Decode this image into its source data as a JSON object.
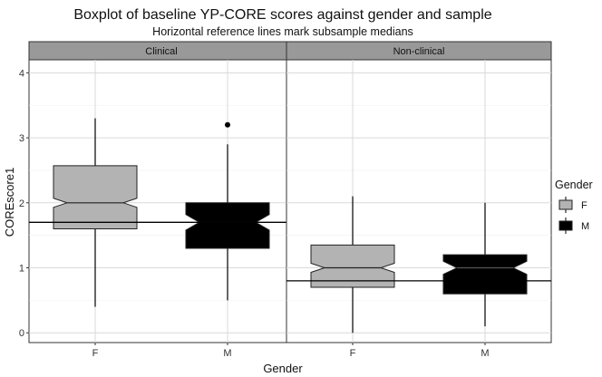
{
  "chart_data": {
    "type": "boxplot",
    "title": "Boxplot of baseline YP-CORE scores against gender and sample",
    "subtitle": "Horizontal reference lines mark subsample medians",
    "xlabel": "Gender",
    "ylabel": "COREscore1",
    "ylim": [
      -0.15,
      4.2
    ],
    "yticks": [
      0,
      1,
      2,
      3,
      4
    ],
    "categories": [
      "F",
      "M"
    ],
    "grid": true,
    "legend": {
      "title": "Gender",
      "placement": "right",
      "entries": [
        {
          "label": "F",
          "color": "#b3b3b3"
        },
        {
          "label": "M",
          "color": "#000000"
        }
      ]
    },
    "panels": [
      {
        "label": "Clinical",
        "reference_median": 1.7,
        "boxes": [
          {
            "category": "F",
            "whisker_low": 0.4,
            "q1": 1.6,
            "median": 2.0,
            "q3": 2.57,
            "whisker_high": 3.3,
            "notch_low": 1.93,
            "notch_high": 2.07,
            "outliers": []
          },
          {
            "category": "M",
            "whisker_low": 0.5,
            "q1": 1.3,
            "median": 1.7,
            "q3": 2.0,
            "whisker_high": 2.9,
            "notch_low": 1.58,
            "notch_high": 1.82,
            "outliers": [
              3.2
            ]
          }
        ]
      },
      {
        "label": "Non-clinical",
        "reference_median": 0.8,
        "boxes": [
          {
            "category": "F",
            "whisker_low": 0.0,
            "q1": 0.7,
            "median": 1.0,
            "q3": 1.35,
            "whisker_high": 2.1,
            "notch_low": 0.93,
            "notch_high": 1.07,
            "outliers": []
          },
          {
            "category": "M",
            "whisker_low": 0.1,
            "q1": 0.6,
            "median": 1.0,
            "q3": 1.2,
            "whisker_high": 2.0,
            "notch_low": 0.9,
            "notch_high": 1.1,
            "outliers": []
          }
        ]
      }
    ]
  }
}
